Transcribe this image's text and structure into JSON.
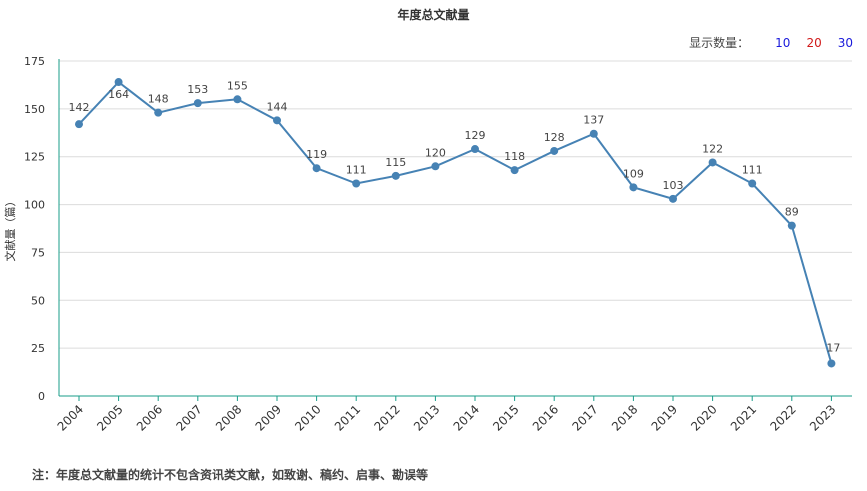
{
  "chart_data": {
    "type": "line",
    "title": "年度总文献量",
    "ylabel": "文献量（篇）",
    "xlabel": "",
    "ylim": [
      0,
      175
    ],
    "yticks": [
      0,
      25,
      50,
      75,
      100,
      125,
      150,
      175
    ],
    "grid": true,
    "categories": [
      "2004",
      "2005",
      "2006",
      "2007",
      "2008",
      "2009",
      "2010",
      "2011",
      "2012",
      "2013",
      "2014",
      "2015",
      "2016",
      "2017",
      "2018",
      "2019",
      "2020",
      "2021",
      "2022",
      "2023"
    ],
    "series": [
      {
        "values": [
          142,
          164,
          148,
          153,
          155,
          144,
          119,
          111,
          115,
          120,
          129,
          118,
          128,
          137,
          109,
          103,
          122,
          111,
          89,
          17
        ]
      }
    ],
    "line_color": "#4682b4",
    "axis_color": "#1a9c8a"
  },
  "display_count": {
    "label": "显示数量：",
    "options": [
      "10",
      "20",
      "30"
    ]
  },
  "note": "注：年度总文献量的统计不包含资讯类文献，如致谢、稿约、启事、勘误等"
}
